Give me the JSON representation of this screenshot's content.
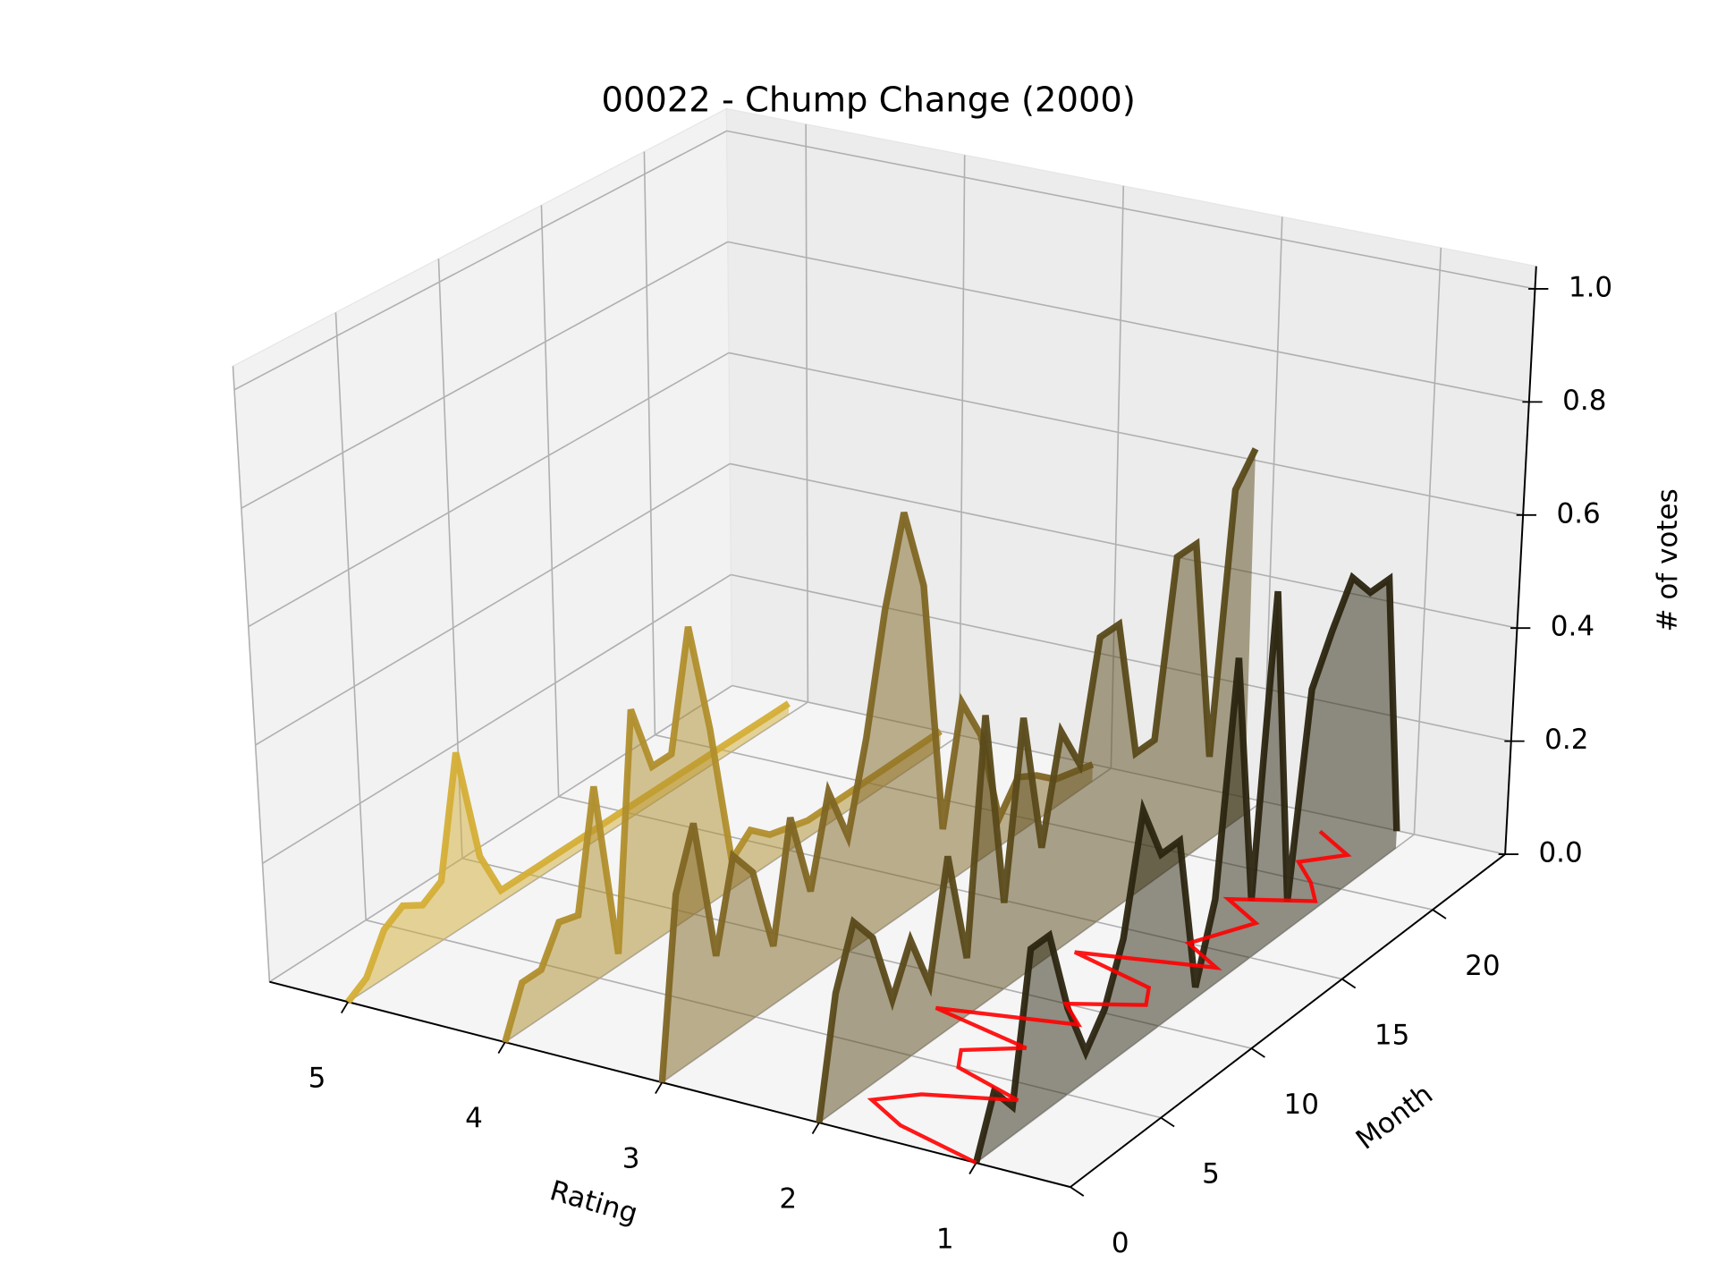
{
  "chart_data": {
    "type": "line3d",
    "title": "00022 - Chump Change (2000)",
    "xlabel": "Rating",
    "ylabel": "Month",
    "zlabel": "# of votes",
    "xlim": [
      0.4,
      5.5
    ],
    "xticks": [
      1,
      2,
      3,
      4,
      5
    ],
    "ylim": [
      0,
      24
    ],
    "yticks": [
      0,
      5,
      10,
      15,
      20
    ],
    "zlim": [
      0,
      1.04
    ],
    "zticks": [
      {
        "value": 0,
        "label": "0.0"
      },
      0.2,
      0.4,
      0.6,
      0.8,
      {
        "value": 1,
        "label": "1.0"
      }
    ],
    "grid": true,
    "x": [
      0,
      1,
      2,
      3,
      4,
      5,
      6,
      7,
      8,
      9,
      10,
      11,
      12,
      13,
      14,
      15,
      16,
      17,
      18,
      19,
      20,
      21,
      22,
      23
    ],
    "series": [
      {
        "rating": 5,
        "color": "#d4ae36",
        "values": [
          0,
          0.02,
          0.08,
          0.1,
          0.08,
          0.1,
          0.3,
          0.1,
          0.02,
          0.02,
          0.02,
          0.02,
          0.02,
          0.02,
          0.02,
          0.02,
          0.02,
          0.02,
          0.02,
          0.02,
          0.02,
          0.02,
          0.02,
          0.02
        ]
      },
      {
        "rating": 4,
        "color": "#b08e2c",
        "values": [
          0,
          0.08,
          0.08,
          0.14,
          0.13,
          0.33,
          0.02,
          0.42,
          0.3,
          0.3,
          0.5,
          0.3,
          0.05,
          0.08,
          0.05,
          0.04,
          0.03,
          0.03,
          0.03,
          0.03,
          0.03,
          0.03,
          0.03,
          0.03
        ]
      },
      {
        "rating": 3,
        "color": "#806624",
        "values": [
          0,
          0.3,
          0.4,
          0.15,
          0.3,
          0.25,
          0.1,
          0.3,
          0.15,
          0.3,
          0.2,
          0.35,
          0.55,
          0.7,
          0.55,
          0.1,
          0.3,
          0.22,
          0.05,
          0.1,
          0.08,
          0.05,
          0.04,
          0.03
        ]
      },
      {
        "rating": 2,
        "color": "#5a4a1a",
        "values": [
          0,
          0.2,
          0.3,
          0.25,
          0.12,
          0.2,
          0.1,
          0.3,
          0.1,
          0.5,
          0.15,
          0.45,
          0.2,
          0.38,
          0.3,
          0.5,
          0.5,
          0.25,
          0.25,
          0.55,
          0.55,
          0.15,
          0.6,
          0.65
        ]
      },
      {
        "rating": 1,
        "color": "#2b2510",
        "values": [
          0,
          0.1,
          0.05,
          0.3,
          0.3,
          0.15,
          0.05,
          0.1,
          0.2,
          0.4,
          0.3,
          0.3,
          0.02,
          0.15,
          0.55,
          0.1,
          0.62,
          0.05,
          0.4,
          0.48,
          0.55,
          0.5,
          0.5,
          0.03
        ]
      }
    ],
    "mean_rating": {
      "color": "#ff0000",
      "values": [
        1,
        1.6,
        1.9,
        1.7,
        1.2,
        1.7,
        1.8,
        1.5,
        2.2,
        1.4,
        1.6,
        1.2,
        1.3,
        1.9,
        1.1,
        1.4,
        1.3,
        1.2,
        1.5,
        1.05,
        1.2,
        1.4,
        1.2,
        1.5
      ]
    }
  }
}
